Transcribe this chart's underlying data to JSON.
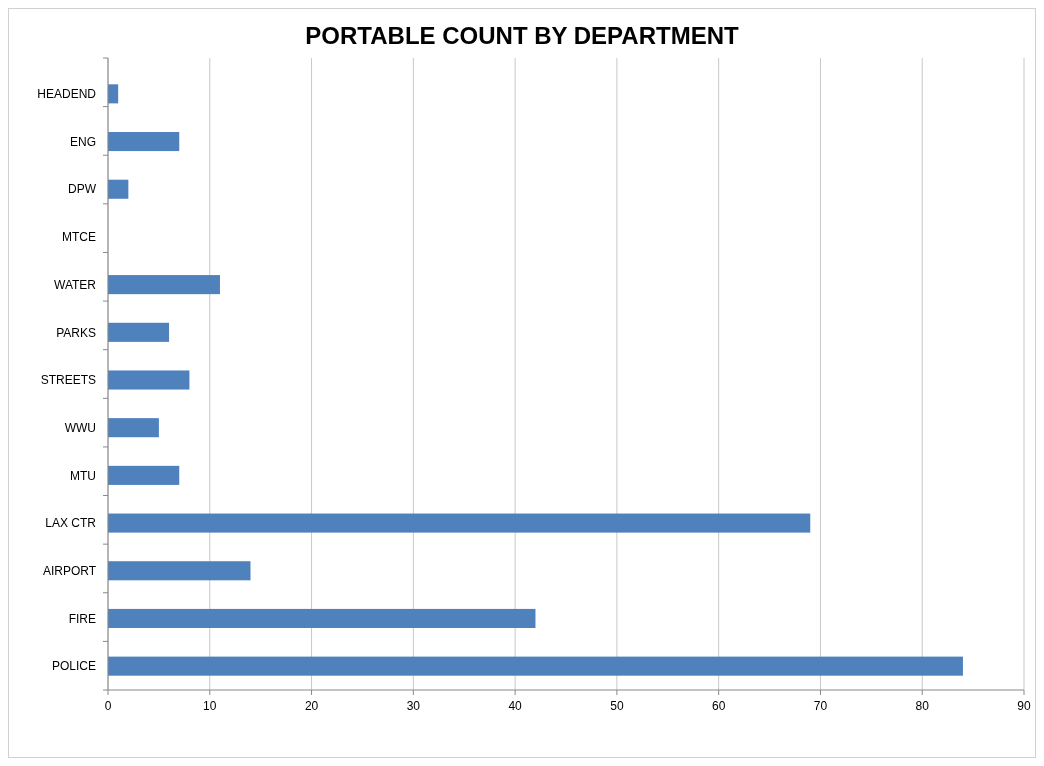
{
  "chart_data": {
    "type": "bar",
    "orientation": "horizontal",
    "title": "PORTABLE COUNT BY DEPARTMENT",
    "categories": [
      "HEADEND",
      "ENG",
      "DPW",
      "MTCE",
      "WATER",
      "PARKS",
      "STREETS",
      "WWU",
      "MTU",
      "LAX CTR",
      "AIRPORT",
      "FIRE",
      "POLICE"
    ],
    "values": [
      1,
      7,
      2,
      0,
      11,
      6,
      8,
      5,
      7,
      69,
      14,
      42,
      84
    ],
    "color": "#4f81bd",
    "xlim": [
      0,
      90
    ],
    "xticks": [
      0,
      10,
      20,
      30,
      40,
      50,
      60,
      70,
      80,
      90
    ],
    "grid": "x"
  }
}
